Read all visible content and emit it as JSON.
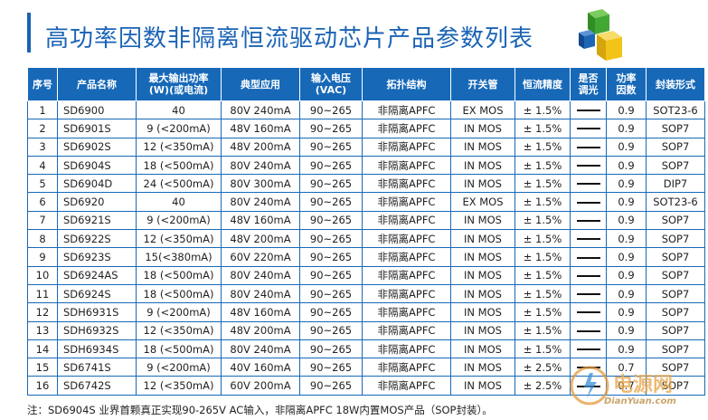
{
  "title": "高功率因数非隔离恒流驱动芯片产品参数列表",
  "headers": [
    [
      "序号"
    ],
    [
      "产品名称"
    ],
    [
      "最大输出功率",
      "(W)(或电流)"
    ],
    [
      "典型应用"
    ],
    [
      "输入电压",
      "(VAC)"
    ],
    [
      "拓扑结构"
    ],
    [
      "开关管"
    ],
    [
      "恒流精度"
    ],
    [
      "是否",
      "调光"
    ],
    [
      "功率",
      "因数"
    ],
    [
      "封装形式"
    ]
  ],
  "rows": [
    [
      "1",
      "SD6900",
      "40",
      "80V 240mA",
      "90~265",
      "非隔离APFC",
      "EX MOS",
      "± 1.5%",
      "—",
      "0.9",
      "SOT23-6"
    ],
    [
      "2",
      "SD6901S",
      "9 (<200mA)",
      "48V 160mA",
      "90~265",
      "非隔离APFC",
      "IN MOS",
      "± 1.5%",
      "—",
      "0.9",
      "SOP7"
    ],
    [
      "3",
      "SD6902S",
      "12 (<350mA)",
      "48V 200mA",
      "90~265",
      "非隔离APFC",
      "IN MOS",
      "± 1.5%",
      "—",
      "0.9",
      "SOP7"
    ],
    [
      "4",
      "SD6904S",
      "18 (<500mA)",
      "80V 240mA",
      "90~265",
      "非隔离APFC",
      "IN MOS",
      "± 1.5%",
      "—",
      "0.9",
      "SOP7"
    ],
    [
      "5",
      "SD6904D",
      "24 (<500mA)",
      "80V 300mA",
      "90~265",
      "非隔离APFC",
      "IN MOS",
      "± 1.5%",
      "—",
      "0.9",
      "DIP7"
    ],
    [
      "6",
      "SD6920",
      "40",
      "80V 240mA",
      "90~265",
      "非隔离APFC",
      "EX MOS",
      "± 1.5%",
      "—",
      "0.9",
      "SOT23-6"
    ],
    [
      "7",
      "SD6921S",
      "9 (<200mA)",
      "48V 160mA",
      "90~265",
      "非隔离APFC",
      "IN MOS",
      "± 1.5%",
      "—",
      "0.9",
      "SOP7"
    ],
    [
      "8",
      "SD6922S",
      "12 (<350mA)",
      "48V 200mA",
      "90~265",
      "非隔离APFC",
      "IN MOS",
      "± 1.5%",
      "—",
      "0.9",
      "SOP7"
    ],
    [
      "9",
      "SD6923S",
      "15(<380mA)",
      "60V 220mA",
      "90~265",
      "非隔离APFC",
      "IN MOS",
      "± 1.5%",
      "—",
      "0.9",
      "SOP7"
    ],
    [
      "10",
      "SD6924AS",
      "18 (<500mA)",
      "80V 240mA",
      "90~265",
      "非隔离APFC",
      "IN MOS",
      "± 1.5%",
      "—",
      "0.9",
      "SOP7"
    ],
    [
      "11",
      "SD6924S",
      "18 (<500mA)",
      "80V 240mA",
      "90~265",
      "非隔离APFC",
      "IN MOS",
      "± 1.5%",
      "—",
      "0.9",
      "SOP7"
    ],
    [
      "12",
      "SDH6931S",
      "9 (<200mA)",
      "48V 160mA",
      "90~265",
      "非隔离APFC",
      "IN MOS",
      "± 1.5%",
      "—",
      "0.9",
      "SOP7"
    ],
    [
      "13",
      "SDH6932S",
      "12 (<350mA)",
      "48V 200mA",
      "90~265",
      "非隔离APFC",
      "IN MOS",
      "± 1.5%",
      "—",
      "0.9",
      "SOP7"
    ],
    [
      "14",
      "SDH6934S",
      "18 (<500mA)",
      "80V 240mA",
      "90~265",
      "非隔离APFC",
      "IN MOS",
      "± 1.5%",
      "—",
      "0.9",
      "SOP7"
    ],
    [
      "15",
      "SD6741S",
      "9 (<200mA)",
      "40V 160mA",
      "90~265",
      "非隔离APFC",
      "IN MOS",
      "± 2.5%",
      "—",
      "0.7",
      "SOP7"
    ],
    [
      "16",
      "SD6742S",
      "12 (<350mA)",
      "60V 200mA",
      "90~265",
      "非隔离APFC",
      "IN MOS",
      "± 2.5%",
      "—",
      "0.7",
      "SOP7"
    ]
  ],
  "note": "注：SD6904S 业界首颗真正实现90-265V AC输入，非隔离APFC 18W内置MOS产品（SOP封装）。",
  "watermark": {
    "site": "电源网",
    "url": "DianYuan.com"
  },
  "colors": {
    "brand_blue": "#1a63b5",
    "header_blue": "#1769b8",
    "cube_green": "#43a833",
    "cube_yellow": "#f2c318",
    "cube_blue": "#1d66b6"
  }
}
